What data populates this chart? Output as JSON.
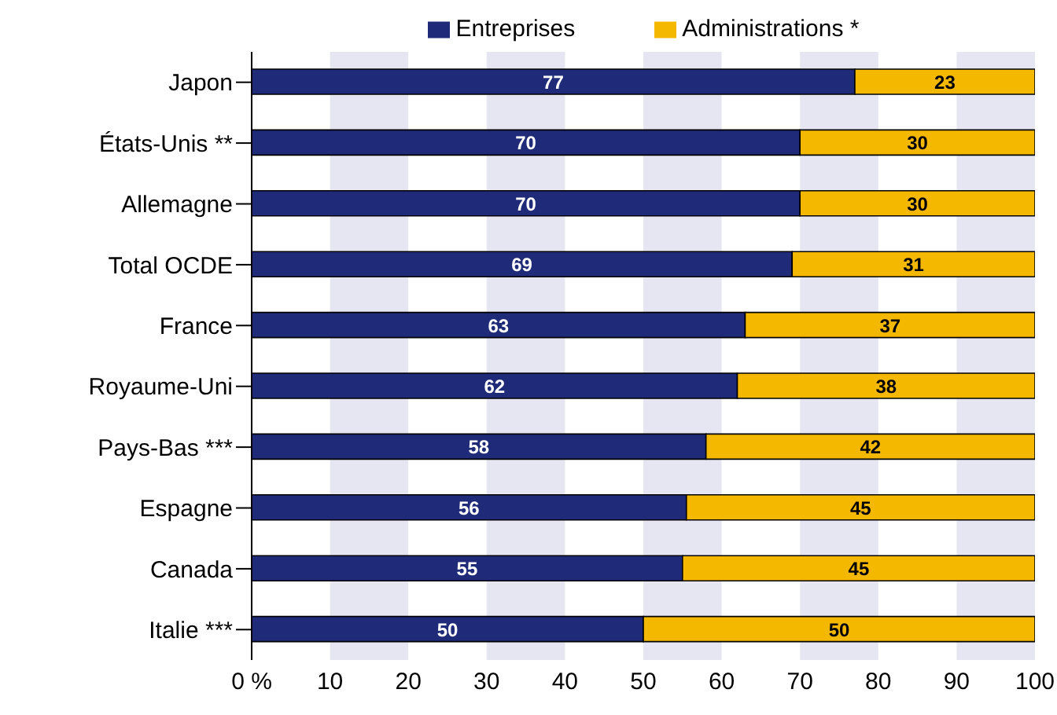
{
  "chart_data": {
    "type": "bar",
    "orientation": "horizontal",
    "stacked": true,
    "categories": [
      "Japon",
      "États-Unis **",
      "Allemagne",
      "Total OCDE",
      "France",
      "Royaume-Uni",
      "Pays-Bas ***",
      "Espagne",
      "Canada",
      "Italie ***"
    ],
    "series": [
      {
        "name": "Entreprises",
        "color": "#1f2a78",
        "values": [
          77,
          70,
          70,
          69,
          63,
          62,
          58,
          55.5,
          55,
          50
        ],
        "value_labels": [
          "77",
          "70",
          "70",
          "69",
          "63",
          "62",
          "58",
          "56",
          "55",
          "50"
        ]
      },
      {
        "name": "Administrations *",
        "color": "#f5b800",
        "values": [
          23,
          30,
          30,
          31,
          37,
          38,
          42,
          44.5,
          45,
          50
        ],
        "value_labels": [
          "23",
          "30",
          "30",
          "31",
          "37",
          "38",
          "42",
          "45",
          "45",
          "50"
        ]
      }
    ],
    "xlim": [
      0,
      100
    ],
    "xticks": [
      {
        "value": 0,
        "label": "0 %"
      },
      10,
      20,
      30,
      40,
      50,
      60,
      70,
      80,
      90,
      100
    ],
    "bands": [
      {
        "axis": "x",
        "from": 10,
        "to": 20,
        "color": "#e6e6f2"
      },
      {
        "axis": "x",
        "from": 30,
        "to": 40,
        "color": "#e6e6f2"
      },
      {
        "axis": "x",
        "from": 50,
        "to": 60,
        "color": "#e6e6f2"
      },
      {
        "axis": "x",
        "from": 70,
        "to": 80,
        "color": "#e6e6f2"
      },
      {
        "axis": "x",
        "from": 90,
        "to": 100,
        "color": "#e6e6f2"
      }
    ],
    "legend": "top"
  }
}
